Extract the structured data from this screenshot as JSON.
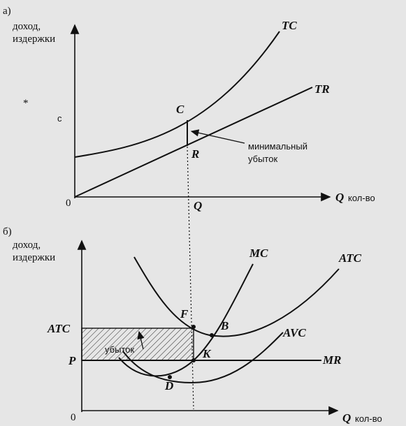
{
  "panel_a": {
    "label": "а)",
    "y_axis_label": [
      "доход,",
      "издержки"
    ],
    "stray_marks": [
      "*",
      "с"
    ],
    "curves": {
      "tc": "TC",
      "tr": "TR"
    },
    "points": {
      "c": "C",
      "r": "R",
      "q": "Q"
    },
    "annotation": [
      "минимальный",
      "убыток"
    ],
    "origin": "0",
    "x_axis_label": "Q",
    "x_axis_unit": "кол-во"
  },
  "panel_b": {
    "label": "б)",
    "y_axis_label": [
      "доход,",
      "издержки"
    ],
    "curves": {
      "mc": "MC",
      "atc": "ATC",
      "avc": "AVC",
      "mr": "MR"
    },
    "points": {
      "f": "F",
      "b": "B",
      "k": "K",
      "d": "D"
    },
    "levels": {
      "atc": "ATC",
      "p": "P"
    },
    "loss_area": "убыток",
    "origin": "0",
    "x_axis_label": "Q",
    "x_axis_unit": "кол-во"
  }
}
